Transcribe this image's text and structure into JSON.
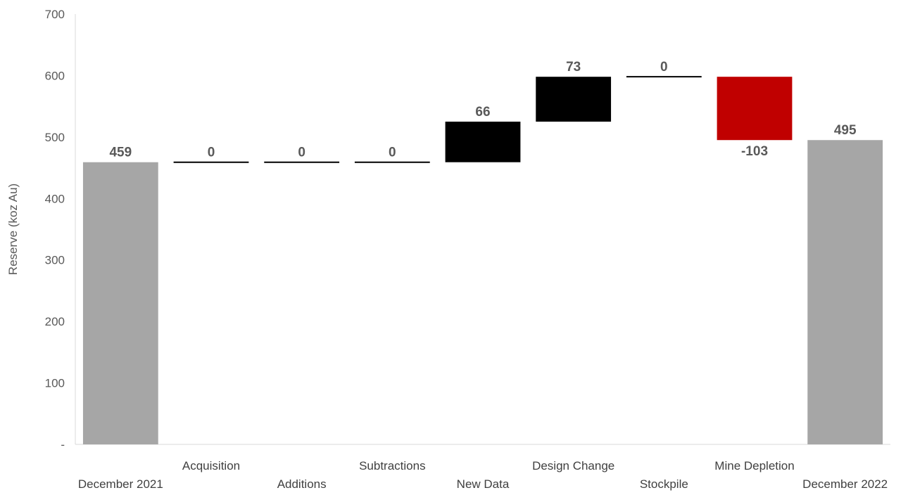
{
  "chart_data": {
    "type": "waterfall",
    "ylabel": "Reserve (koz Au)",
    "ylim": [
      0,
      700
    ],
    "yticks": [
      {
        "value": 0,
        "label": "-"
      },
      {
        "value": 100,
        "label": "100"
      },
      {
        "value": 200,
        "label": "200"
      },
      {
        "value": 300,
        "label": "300"
      },
      {
        "value": 400,
        "label": "400"
      },
      {
        "value": 500,
        "label": "500"
      },
      {
        "value": 600,
        "label": "600"
      },
      {
        "value": 700,
        "label": "700"
      }
    ],
    "grid": false,
    "legend": "none",
    "colors": {
      "total": "#a6a6a6",
      "increase": "#000000",
      "decrease": "#c00000",
      "zero": "#000000"
    },
    "bars": [
      {
        "category": "December 2021",
        "kind": "total",
        "start": 0,
        "end": 459,
        "label": "459"
      },
      {
        "category": "Acquisition",
        "kind": "zero",
        "start": 459,
        "end": 459,
        "label": "0"
      },
      {
        "category": "Additions",
        "kind": "zero",
        "start": 459,
        "end": 459,
        "label": "0"
      },
      {
        "category": "Subtractions",
        "kind": "zero",
        "start": 459,
        "end": 459,
        "label": "0"
      },
      {
        "category": "New Data",
        "kind": "increase",
        "start": 459,
        "end": 525,
        "label": "66"
      },
      {
        "category": "Design Change",
        "kind": "increase",
        "start": 525,
        "end": 598,
        "label": "73"
      },
      {
        "category": "Stockpile",
        "kind": "zero",
        "start": 598,
        "end": 598,
        "label": "0"
      },
      {
        "category": "Mine Depletion",
        "kind": "decrease",
        "start": 598,
        "end": 495,
        "label": "-103"
      },
      {
        "category": "December 2022",
        "kind": "total",
        "start": 0,
        "end": 495,
        "label": "495"
      }
    ]
  }
}
